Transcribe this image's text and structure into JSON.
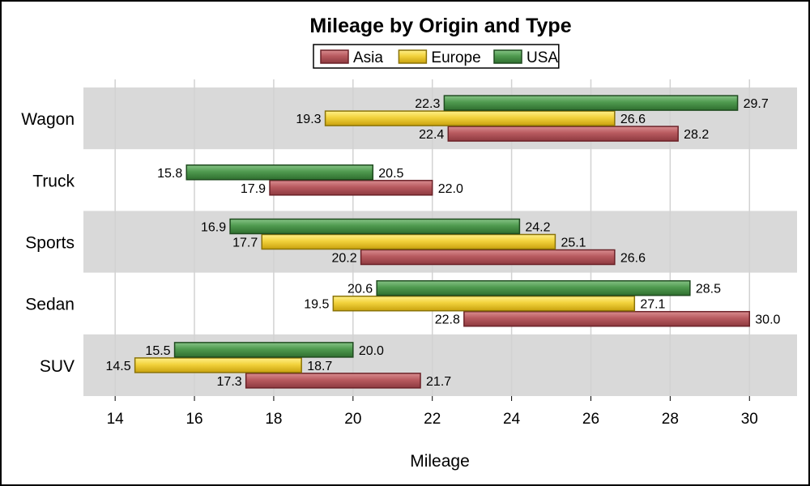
{
  "chart_data": {
    "type": "bar",
    "orientation": "horizontal",
    "title": "Mileage by Origin and Type",
    "xlabel": "Mileage",
    "ylabel": "",
    "xlim": [
      13.2,
      31.2
    ],
    "x_ticks": [
      14,
      16,
      18,
      20,
      22,
      24,
      26,
      28,
      30
    ],
    "categories": [
      "Wagon",
      "Truck",
      "Sports",
      "Sedan",
      "SUV"
    ],
    "legend_position": "top-center",
    "grid": true,
    "series": [
      {
        "name": "Asia",
        "color": "#b85a5f",
        "low": [
          22.4,
          17.9,
          20.2,
          22.8,
          17.3
        ],
        "high": [
          28.2,
          22.0,
          26.6,
          30.0,
          21.7
        ]
      },
      {
        "name": "Europe",
        "color": "#f2d23c",
        "low": [
          19.3,
          null,
          17.7,
          19.5,
          14.5
        ],
        "high": [
          26.6,
          null,
          25.1,
          27.1,
          18.7
        ]
      },
      {
        "name": "USA",
        "color": "#4f9a4f",
        "low": [
          22.3,
          15.8,
          16.9,
          20.6,
          15.5
        ],
        "high": [
          29.7,
          20.5,
          24.2,
          28.5,
          20.0
        ]
      }
    ]
  }
}
